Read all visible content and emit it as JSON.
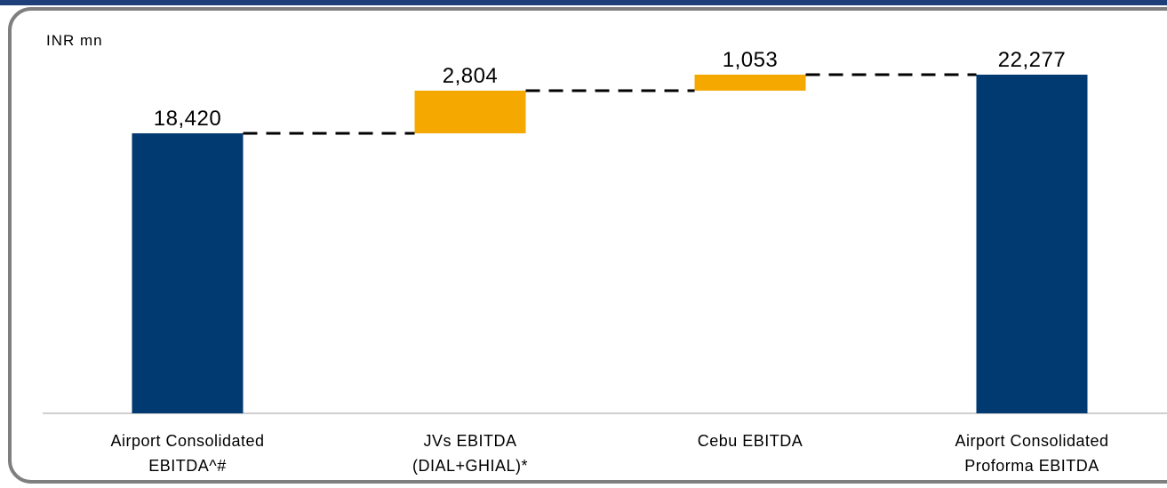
{
  "chart_data": {
    "type": "waterfall",
    "y_label": "INR mn",
    "categories": [
      "Airport Consolidated EBITDA^#",
      "JVs EBITDA (DIAL+GHIAL)*",
      "Cebu EBITDA",
      "Airport Consolidated Proforma EBITDA"
    ],
    "values": [
      18420,
      2804,
      1053,
      22277
    ],
    "value_labels": [
      "18,420",
      "2,804",
      "1,053",
      "22,277"
    ],
    "measures": [
      "total",
      "relative",
      "relative",
      "total"
    ],
    "total_color": "#003a70",
    "increase_color": "#f5a800",
    "connector_style": "dashed"
  }
}
